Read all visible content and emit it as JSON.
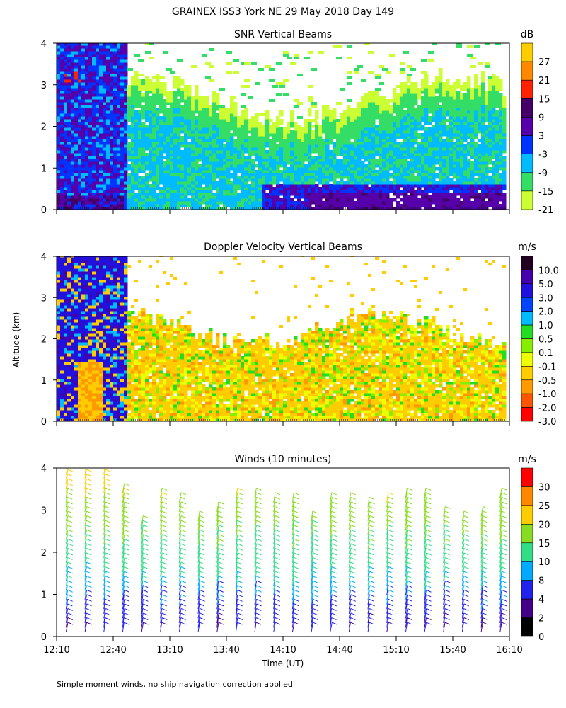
{
  "figure": {
    "title": "GRAINEX ISS3 York NE  29 May 2018 Day 149",
    "ylabel": "Altitude (km)",
    "xlabel": "Time (UT)",
    "footnote": "Simple moment winds, no ship navigation correction applied"
  },
  "chart_data": [
    {
      "type": "heatmap",
      "title": "SNR Vertical Beams",
      "colorbar_unit": "dB",
      "colorbar_ticks": [
        "27",
        "21",
        "15",
        "9",
        "3",
        "-3",
        "-9",
        "-15",
        "-21"
      ],
      "colorbar_colors": [
        "#ffcc00",
        "#ff8800",
        "#ff2200",
        "#440066",
        "#5500aa",
        "#0033ff",
        "#00bbff",
        "#33dd66",
        "#ccff33"
      ],
      "x_ticks": [
        "12:10",
        "12:40",
        "13:10",
        "13:40",
        "14:10",
        "14:40",
        "15:10",
        "15:40",
        "16:10"
      ],
      "y_ticks": [
        "0",
        "1",
        "2",
        "3",
        "4"
      ],
      "xlim": [
        "12:10",
        "16:10"
      ],
      "ylim": [
        0,
        4
      ]
    },
    {
      "type": "heatmap",
      "title": "Doppler Velocity Vertical Beams",
      "colorbar_unit": "m/s",
      "colorbar_ticks": [
        "10.0",
        "5.0",
        "3.0",
        "2.0",
        "1.0",
        "0.5",
        "0.1",
        "-0.1",
        "-0.5",
        "-1.0",
        "-2.0",
        "-3.0"
      ],
      "colorbar_colors": [
        "#220022",
        "#4400aa",
        "#2211dd",
        "#0044ff",
        "#00bbff",
        "#22dd22",
        "#88ee00",
        "#eeff00",
        "#ffcc00",
        "#ff9900",
        "#ff5500",
        "#ff0000"
      ],
      "x_ticks": [
        "12:10",
        "12:40",
        "13:10",
        "13:40",
        "14:10",
        "14:40",
        "15:10",
        "15:40",
        "16:10"
      ],
      "y_ticks": [
        "0",
        "1",
        "2",
        "3",
        "4"
      ],
      "xlim": [
        "12:10",
        "16:10"
      ],
      "ylim": [
        0,
        4
      ]
    },
    {
      "type": "scatter",
      "title": "Winds (10 minutes)",
      "colorbar_unit": "m/s",
      "colorbar_ticks": [
        "30",
        "25",
        "20",
        "15",
        "10",
        "8",
        "4",
        "2",
        "0"
      ],
      "colorbar_colors": [
        "#ff0000",
        "#ff8800",
        "#ffcc00",
        "#88dd22",
        "#33dd88",
        "#00aaff",
        "#2222ee",
        "#440088",
        "#000000"
      ],
      "x_ticks": [
        "12:10",
        "12:40",
        "13:10",
        "13:40",
        "14:10",
        "14:40",
        "15:10",
        "15:40",
        "16:10"
      ],
      "y_ticks": [
        "0",
        "1",
        "2",
        "3",
        "4"
      ],
      "xlim": [
        "12:10",
        "16:10"
      ],
      "ylim": [
        0,
        4
      ]
    }
  ]
}
